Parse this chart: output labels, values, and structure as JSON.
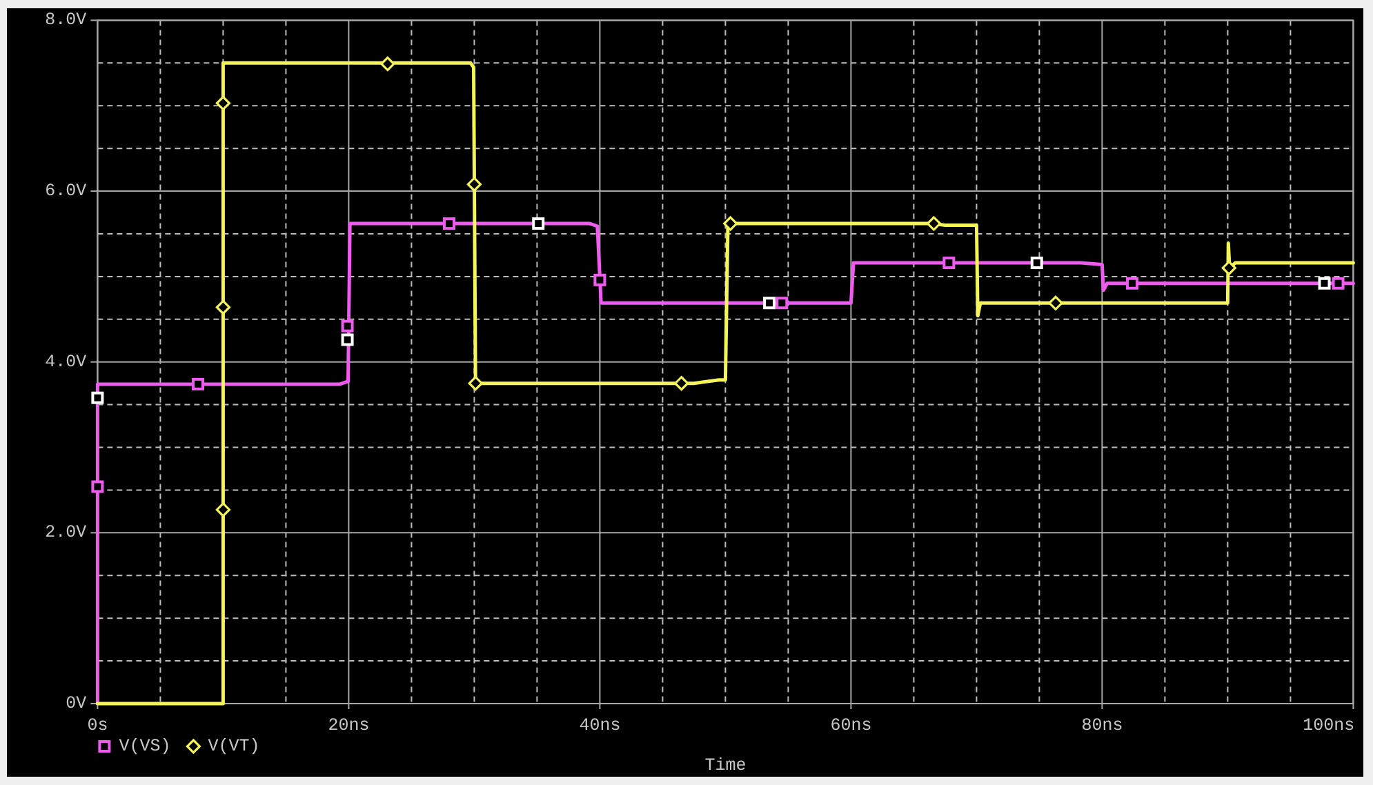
{
  "chart_data": {
    "type": "line",
    "xlabel": "Time",
    "xlim": [
      0,
      100
    ],
    "ylim": [
      0,
      8
    ],
    "xticks": [
      {
        "value": 0,
        "label": "0s"
      },
      {
        "value": 5,
        "label": null
      },
      {
        "value": 10,
        "label": null
      },
      {
        "value": 15,
        "label": null
      },
      {
        "value": 20,
        "label": "20ns"
      },
      {
        "value": 25,
        "label": null
      },
      {
        "value": 30,
        "label": null
      },
      {
        "value": 35,
        "label": null
      },
      {
        "value": 40,
        "label": "40ns"
      },
      {
        "value": 45,
        "label": null
      },
      {
        "value": 50,
        "label": null
      },
      {
        "value": 55,
        "label": null
      },
      {
        "value": 60,
        "label": "60ns"
      },
      {
        "value": 65,
        "label": null
      },
      {
        "value": 70,
        "label": null
      },
      {
        "value": 75,
        "label": null
      },
      {
        "value": 80,
        "label": "80ns"
      },
      {
        "value": 85,
        "label": null
      },
      {
        "value": 90,
        "label": null
      },
      {
        "value": 95,
        "label": null
      },
      {
        "value": 100,
        "label": "100ns"
      }
    ],
    "yticks": [
      {
        "value": 0,
        "label": "0V"
      },
      {
        "value": 0.5,
        "label": null
      },
      {
        "value": 1,
        "label": null
      },
      {
        "value": 1.5,
        "label": null
      },
      {
        "value": 2,
        "label": "2.0V"
      },
      {
        "value": 2.5,
        "label": null
      },
      {
        "value": 3,
        "label": null
      },
      {
        "value": 3.5,
        "label": null
      },
      {
        "value": 4,
        "label": "4.0V"
      },
      {
        "value": 4.5,
        "label": null
      },
      {
        "value": 5,
        "label": null
      },
      {
        "value": 5.5,
        "label": null
      },
      {
        "value": 6,
        "label": "6.0V"
      },
      {
        "value": 6.5,
        "label": null
      },
      {
        "value": 7,
        "label": null
      },
      {
        "value": 7.5,
        "label": null
      },
      {
        "value": 8,
        "label": "8.0V"
      }
    ],
    "grid": true,
    "legend": "bottom left",
    "series": [
      {
        "color": "#ee5cee",
        "x": [
          0,
          0,
          19.3,
          19.9,
          19.95,
          20.1,
          39.2,
          39.8,
          40.1,
          60,
          60.2,
          78.3,
          80,
          80.1,
          80.4,
          100
        ],
        "values": [
          0,
          3.74,
          3.74,
          3.77,
          3.77,
          5.62,
          5.62,
          5.59,
          4.69,
          4.69,
          5.16,
          5.16,
          5.14,
          4.84,
          4.92,
          4.92
        ]
      },
      {
        "color": "#f5f55a",
        "x": [
          0,
          10,
          10,
          29.7,
          29.95,
          30.1,
          47.5,
          49.5,
          50,
          50.2,
          66.5,
          67.5,
          70,
          70.1,
          70.3,
          90,
          90.05,
          90.15,
          90.6,
          100
        ],
        "values": [
          0,
          0,
          7.5,
          7.5,
          7.45,
          3.75,
          3.75,
          3.79,
          3.79,
          5.62,
          5.62,
          5.6,
          5.6,
          4.54,
          4.69,
          4.69,
          5.39,
          5.1,
          5.16,
          5.16
        ]
      },
      {
        "type": "scatter",
        "name": "V(VS)",
        "color": "#ee5cee",
        "marker": "square",
        "x": [
          0,
          8,
          19.9,
          28,
          40,
          54.5,
          67.8,
          82.4,
          98.8
        ],
        "values": [
          2.54,
          3.74,
          4.42,
          5.62,
          4.96,
          4.69,
          5.16,
          4.92,
          4.92
        ]
      },
      {
        "type": "scatter",
        "name": "V(VT)",
        "color": "#f5f55a",
        "marker": "diamond",
        "x": [
          10,
          10,
          10,
          23.1,
          30,
          30.1,
          46.5,
          50.4,
          66.6,
          76.3,
          90.1
        ],
        "values": [
          7.03,
          4.64,
          2.27,
          7.49,
          6.08,
          3.75,
          3.75,
          5.62,
          5.62,
          4.69,
          5.1
        ]
      },
      {
        "type": "scatter",
        "color": "#ffffff",
        "marker": "square",
        "x": [
          0,
          19.9,
          35.1,
          53.5,
          74.8,
          97.7
        ],
        "values": [
          3.58,
          4.26,
          5.62,
          4.69,
          5.16,
          4.92
        ]
      }
    ]
  }
}
